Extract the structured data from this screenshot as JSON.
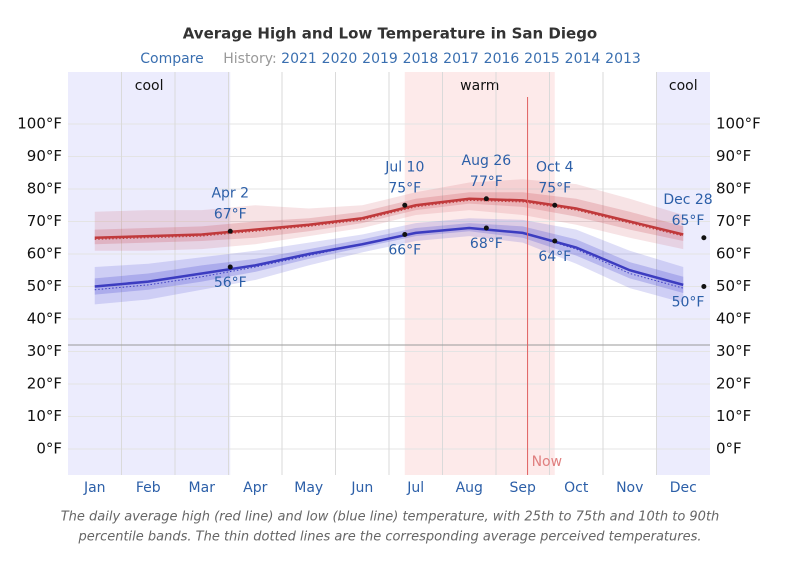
{
  "chart_data": {
    "type": "line",
    "title": "Average High and Low Temperature in San Diego",
    "compare": "Compare",
    "history_label": "History:",
    "years": [
      "2021",
      "2020",
      "2019",
      "2018",
      "2017",
      "2016",
      "2015",
      "2014",
      "2013"
    ],
    "categories": [
      "Jan",
      "Feb",
      "Mar",
      "Apr",
      "May",
      "Jun",
      "Jul",
      "Aug",
      "Sep",
      "Oct",
      "Nov",
      "Dec"
    ],
    "high": {
      "color": "#c0393b",
      "values": [
        65,
        65.5,
        66,
        67.5,
        69,
        71,
        75,
        77,
        76.5,
        74,
        70,
        66
      ],
      "perceived": [
        64.5,
        65,
        65.5,
        67,
        68.5,
        70.5,
        74.5,
        76.5,
        76,
        73.5,
        69.5,
        65.5
      ],
      "p10": [
        61,
        61,
        61.5,
        63,
        65.5,
        68,
        72,
        73.5,
        72,
        69,
        65,
        61.5
      ],
      "p25": [
        63,
        63.5,
        64,
        65,
        67,
        69.5,
        73.5,
        75.5,
        74.5,
        71.5,
        67.5,
        64
      ],
      "p75": [
        67.5,
        68,
        68.5,
        70,
        71,
        73,
        77,
        79,
        79,
        77,
        73,
        68.5
      ],
      "p90": [
        73,
        73.5,
        73.5,
        75,
        74,
        75,
        79,
        82,
        83,
        81.5,
        77,
        72
      ]
    },
    "low": {
      "color": "#3c3cc0",
      "values": [
        50,
        51.5,
        54,
        56.5,
        60,
        63,
        66.5,
        68,
        66.5,
        62,
        55,
        50.5
      ],
      "perceived": [
        49,
        50.5,
        53,
        56,
        59.5,
        63,
        66.5,
        68,
        66.5,
        61.5,
        54,
        49.5
      ],
      "p10": [
        44.5,
        46,
        49,
        52,
        56.5,
        60.5,
        64,
        65.5,
        63.5,
        57,
        49.5,
        45
      ],
      "p25": [
        47.5,
        49,
        51.5,
        54.5,
        58.5,
        62,
        65.5,
        67,
        65,
        59.5,
        52.5,
        48
      ],
      "p75": [
        52.5,
        54,
        56.5,
        58.5,
        61.5,
        64.5,
        68,
        69.5,
        68.5,
        64.5,
        57.5,
        53
      ],
      "p90": [
        56,
        57,
        59,
        61,
        63.5,
        66,
        69.5,
        71,
        70.5,
        67.5,
        61,
        56
      ]
    },
    "annotations": [
      {
        "date": "Apr 2",
        "high": 67,
        "high_label": "67°F",
        "low": 56,
        "low_label": "56°F"
      },
      {
        "date": "Jul 10",
        "high": 75,
        "high_label": "75°F",
        "low": 66,
        "low_label": "66°F"
      },
      {
        "date": "Aug 26",
        "high": 77,
        "high_label": "77°F",
        "low": 68,
        "low_label": "68°F"
      },
      {
        "date": "Oct 4",
        "high": 75,
        "high_label": "75°F",
        "low": 64,
        "low_label": "64°F"
      },
      {
        "date": "Dec 28",
        "high": 65,
        "high_label": "65°F",
        "low": 50,
        "low_label": "50°F"
      }
    ],
    "seasons": [
      "cool",
      "warm",
      "cool"
    ],
    "now_label": "Now",
    "freezing": 32,
    "ylim": [
      -8,
      116
    ],
    "yticks": [
      {
        "value": 0,
        "label": "0°F"
      },
      {
        "value": 10,
        "label": "10°F"
      },
      {
        "value": 20,
        "label": "20°F"
      },
      {
        "value": 30,
        "label": "30°F"
      },
      {
        "value": 40,
        "label": "40°F"
      },
      {
        "value": 50,
        "label": "50°F"
      },
      {
        "value": 60,
        "label": "60°F"
      },
      {
        "value": 70,
        "label": "70°F"
      },
      {
        "value": 80,
        "label": "80°F"
      },
      {
        "value": 90,
        "label": "90°F"
      },
      {
        "value": 100,
        "label": "100°F"
      }
    ],
    "grid": true,
    "caption": [
      "The daily average high (red line) and low (blue line) temperature, with 25th to 75th and 10th to 90th",
      "percentile bands. The thin dotted lines are the corresponding average perceived temperatures."
    ]
  }
}
